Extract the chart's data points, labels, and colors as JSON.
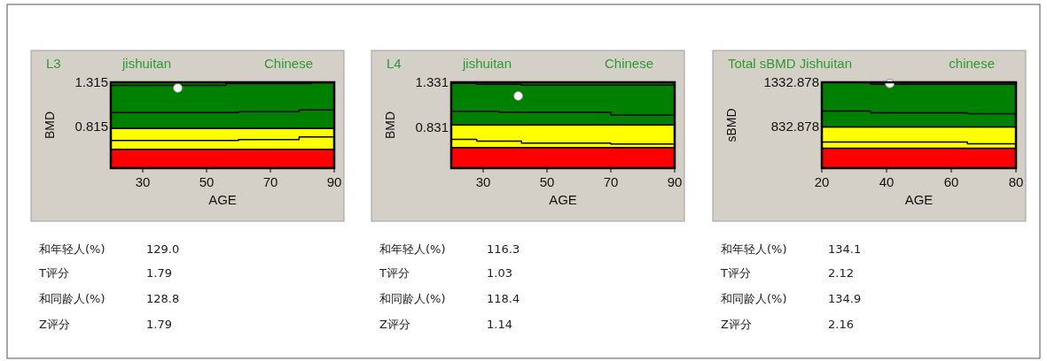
{
  "chart_data": [
    {
      "type": "scatter",
      "title": "L3",
      "subtitle": "jishuitan",
      "xlabel": "AGE",
      "ylabel": "BMD",
      "xlim": [
        20,
        90
      ],
      "xticks": [
        30,
        50,
        70,
        90
      ],
      "ylim": [
        0.335,
        1.315
      ],
      "yticks": [
        0.815,
        1.315
      ],
      "bands": [
        {
          "axis": "y",
          "from": 0.335,
          "to": 0.55,
          "color": "#ff0000"
        },
        {
          "axis": "y",
          "from": 0.55,
          "to": 0.79,
          "color": "#ffff00"
        },
        {
          "axis": "y",
          "from": 0.79,
          "to": 1.315,
          "color": "#008000"
        }
      ],
      "series": [
        {
          "type": "step",
          "color": "#000000",
          "x": [
            20,
            56,
            83,
            90
          ],
          "values": [
            1.28,
            1.3,
            1.31,
            1.31
          ]
        },
        {
          "type": "step",
          "color": "#000000",
          "x": [
            20,
            60,
            79,
            90
          ],
          "values": [
            0.97,
            0.98,
            1.0,
            1.0
          ]
        },
        {
          "type": "step",
          "color": "#000000",
          "x": [
            20,
            60,
            79,
            90
          ],
          "values": [
            0.65,
            0.66,
            0.69,
            0.69
          ]
        },
        {
          "marker": "circle",
          "color": "#ffffff",
          "x": [
            41
          ],
          "values": [
            1.25
          ]
        }
      ],
      "annotations": [
        "Chinese",
        "和年轻人(%)",
        "129.0",
        "T评分",
        "1.79",
        "和同龄人(%)",
        "128.8",
        "Z评分",
        "1.79"
      ]
    },
    {
      "type": "scatter",
      "title": "L4",
      "subtitle": "jishuitan",
      "xlabel": "AGE",
      "ylabel": "BMD",
      "xlim": [
        20,
        90
      ],
      "xticks": [
        30,
        50,
        70,
        90
      ],
      "ylim": [
        0.383,
        1.331
      ],
      "yticks": [
        0.831,
        1.331
      ],
      "bands": [
        {
          "axis": "y",
          "from": 0.383,
          "to": 0.61,
          "color": "#ff0000"
        },
        {
          "axis": "y",
          "from": 0.61,
          "to": 0.86,
          "color": "#ffff00"
        },
        {
          "axis": "y",
          "from": 0.86,
          "to": 1.331,
          "color": "#008000"
        }
      ],
      "series": [
        {
          "type": "step",
          "color": "#000000",
          "x": [
            20,
            28,
            42,
            90
          ],
          "values": [
            1.32,
            1.31,
            1.3,
            1.3
          ]
        },
        {
          "type": "step",
          "color": "#000000",
          "x": [
            20,
            35,
            70,
            90
          ],
          "values": [
            1.01,
            1.0,
            0.97,
            0.97
          ]
        },
        {
          "type": "step",
          "color": "#000000",
          "x": [
            20,
            28,
            42,
            70,
            90
          ],
          "values": [
            0.7,
            0.68,
            0.66,
            0.65,
            0.65
          ]
        },
        {
          "marker": "circle",
          "color": "#ffffff",
          "x": [
            41
          ],
          "values": [
            1.18
          ]
        }
      ],
      "annotations": [
        "Chinese",
        "和年轻人(%)",
        "116.3",
        "T评分",
        "1.03",
        "和同龄人(%)",
        "118.4",
        "Z评分",
        "1.14"
      ]
    },
    {
      "type": "scatter",
      "title": "Total sBMD Jishuitan",
      "xlabel": "AGE",
      "ylabel": "sBMD",
      "xlim": [
        20,
        80
      ],
      "xticks": [
        20,
        40,
        60,
        80
      ],
      "ylim": [
        366,
        1332.878
      ],
      "yticks": [
        832.878,
        1332.878
      ],
      "bands": [
        {
          "axis": "y",
          "from": 366,
          "to": 590,
          "color": "#ff0000"
        },
        {
          "axis": "y",
          "from": 590,
          "to": 830,
          "color": "#ffff00"
        },
        {
          "axis": "y",
          "from": 830,
          "to": 1332.878,
          "color": "#008000"
        }
      ],
      "series": [
        {
          "type": "step",
          "color": "#000000",
          "x": [
            20,
            35,
            80
          ],
          "values": [
            1330,
            1310,
            1310
          ]
        },
        {
          "type": "step",
          "color": "#000000",
          "x": [
            20,
            35,
            65,
            80
          ],
          "values": [
            1010,
            990,
            980,
            980
          ]
        },
        {
          "type": "step",
          "color": "#000000",
          "x": [
            20,
            65,
            80
          ],
          "values": [
            660,
            640,
            640
          ]
        },
        {
          "marker": "circle",
          "color": "#ffffff",
          "x": [
            41
          ],
          "values": [
            1320
          ]
        }
      ],
      "annotations": [
        "chinese",
        "和年轻人(%)",
        "134.1",
        "T评分",
        "2.12",
        "和同龄人(%)",
        "134.9",
        "Z评分",
        "2.16"
      ]
    }
  ]
}
